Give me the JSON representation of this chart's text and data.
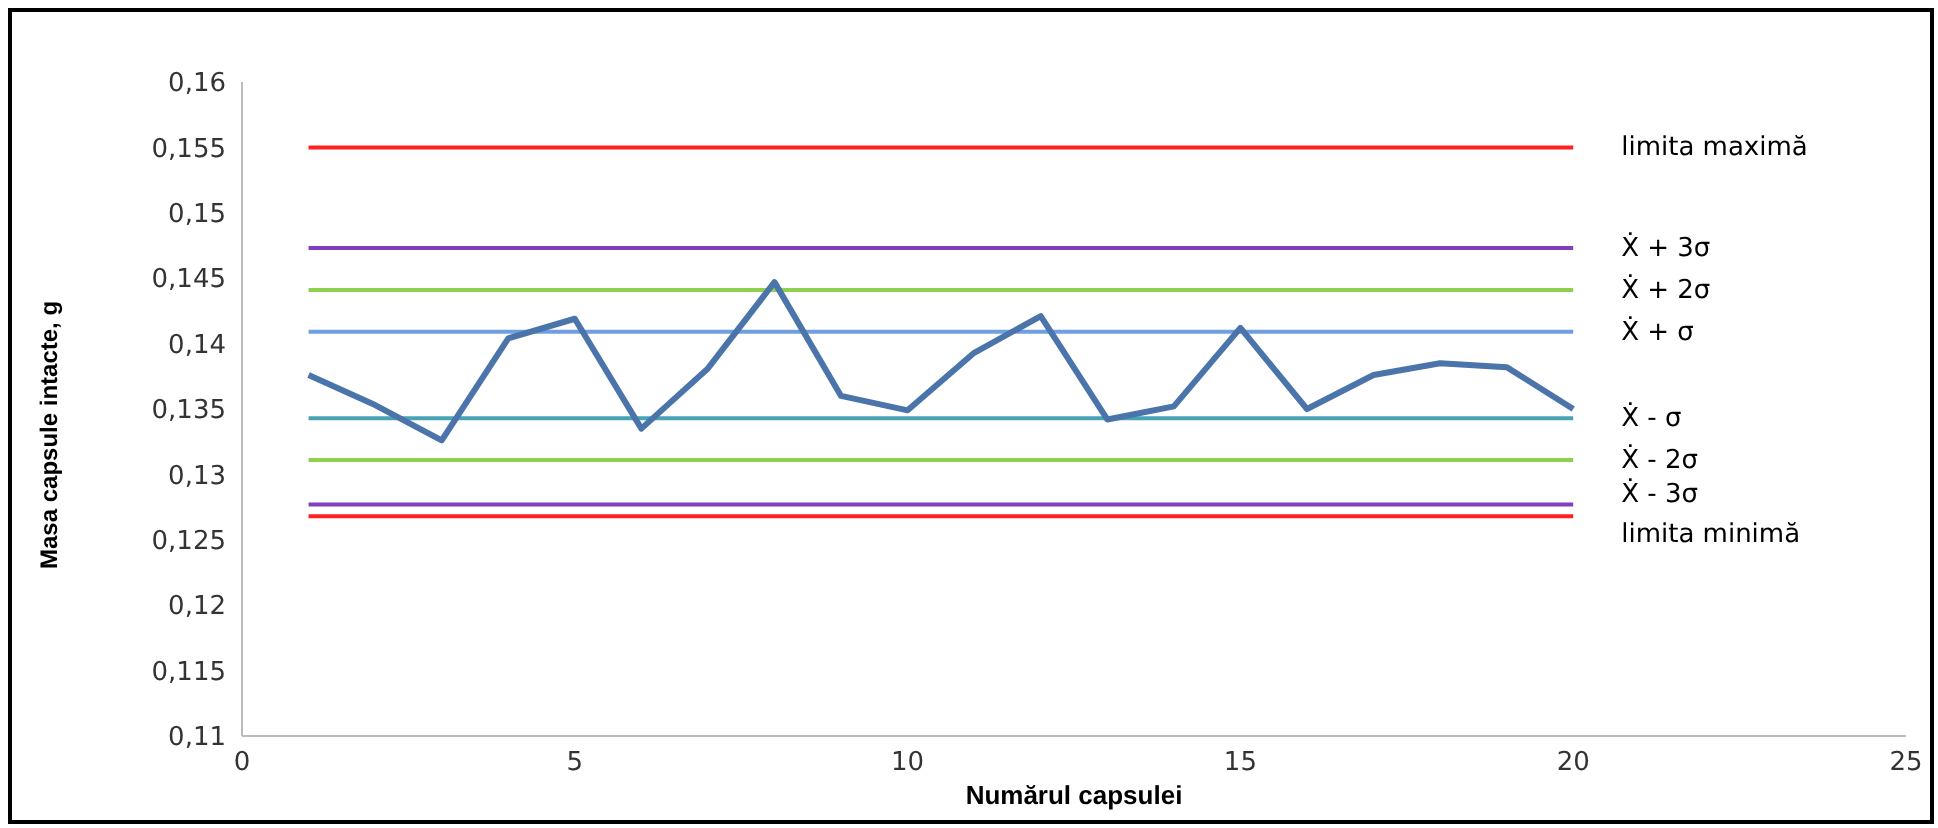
{
  "chart_data": {
    "type": "line",
    "xlabel": "Numărul capsulei",
    "ylabel": "Masa capsule intacte, g",
    "x": [
      1,
      2,
      3,
      4,
      5,
      6,
      7,
      8,
      9,
      10,
      11,
      12,
      13,
      14,
      15,
      16,
      17,
      18,
      19,
      20
    ],
    "series": [
      {
        "color": "#4a74aa",
        "values": [
          0.1376,
          0.1353,
          0.1326,
          0.1404,
          0.1419,
          0.1335,
          0.1381,
          0.1447,
          0.136,
          0.1349,
          0.1393,
          0.1421,
          0.1342,
          0.1352,
          0.1412,
          0.135,
          0.1376,
          0.1385,
          0.1382,
          0.135
        ]
      }
    ],
    "xlim": [
      0,
      25
    ],
    "xticks": [
      0,
      5,
      10,
      15,
      20,
      25
    ],
    "ylim": [
      0.11,
      0.16
    ],
    "yticks": [
      {
        "value": 0.11,
        "label": "0,11"
      },
      {
        "value": 0.115,
        "label": "0,115"
      },
      {
        "value": 0.12,
        "label": "0,12"
      },
      {
        "value": 0.125,
        "label": "0,125"
      },
      {
        "value": 0.13,
        "label": "0,13"
      },
      {
        "value": 0.135,
        "label": "0,135"
      },
      {
        "value": 0.14,
        "label": "0,14"
      },
      {
        "value": 0.145,
        "label": "0,145"
      },
      {
        "value": 0.15,
        "label": "0,15"
      },
      {
        "value": 0.155,
        "label": "0,155"
      },
      {
        "value": 0.16,
        "label": "0,16"
      }
    ],
    "ref_lines": [
      {
        "axis": "y",
        "value": 0.155,
        "label": "limita maximă",
        "color": "#ff2020"
      },
      {
        "axis": "y",
        "value": 0.1473,
        "label": "Ẋ + 3σ",
        "color": "#7f3fbf"
      },
      {
        "axis": "y",
        "value": 0.1441,
        "label": "Ẋ + 2σ",
        "color": "#8fd14f"
      },
      {
        "axis": "y",
        "value": 0.1409,
        "label": "Ẋ + σ",
        "color": "#6f9fe0"
      },
      {
        "axis": "y",
        "value": 0.1343,
        "label": "Ẋ - σ",
        "color": "#4aa3b5"
      },
      {
        "axis": "y",
        "value": 0.1311,
        "label": "Ẋ - 2σ",
        "color": "#8fd14f"
      },
      {
        "axis": "y",
        "value": 0.1277,
        "label": "Ẋ - 3σ",
        "color": "#7f3fbf"
      },
      {
        "axis": "y",
        "value": 0.1268,
        "label": "limita minimă",
        "color": "#ff2020"
      }
    ],
    "grid": false,
    "legend": false,
    "marker": "none",
    "line_style": "solid"
  }
}
